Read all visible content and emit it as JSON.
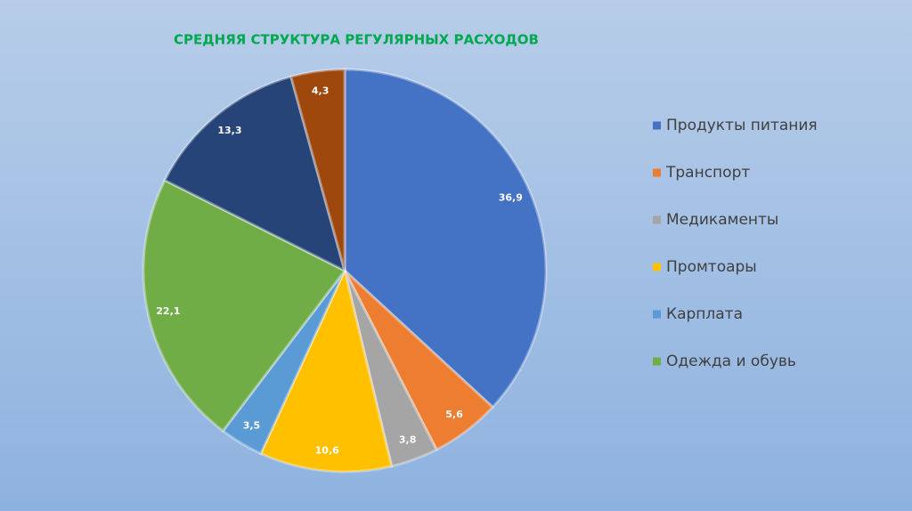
{
  "chart_data": {
    "type": "pie",
    "title": "СРЕДНЯЯ СТРУКТУРА РЕГУЛЯРНЫХ РАСХОДОВ",
    "categories": [
      "Продукты питания",
      "Транспорт",
      "Медикаменты",
      "Промтоары",
      "Карплата",
      "Одежда и обувь",
      null,
      null
    ],
    "values": [
      36.9,
      5.6,
      3.8,
      10.6,
      3.5,
      22.1,
      13.3,
      4.3
    ],
    "value_labels": [
      "36,9",
      "5,6",
      "3,8",
      "10,6",
      "3,5",
      "22,1",
      "13,3",
      "4,3"
    ],
    "colors": [
      "#4472c4",
      "#ed7d31",
      "#a5a5a5",
      "#ffc000",
      "#5b9bd5",
      "#70ad47",
      "#264478",
      "#9e480e"
    ],
    "legend": "right"
  }
}
